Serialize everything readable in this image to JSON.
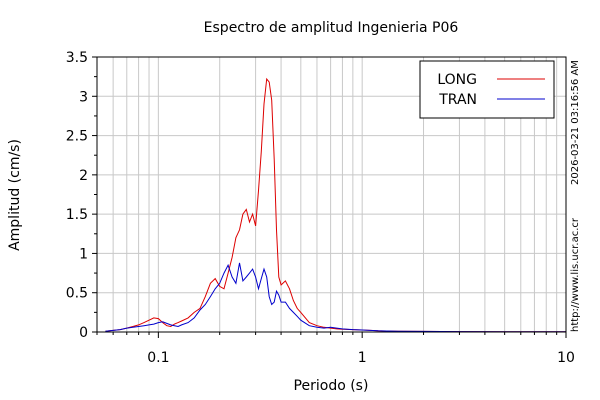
{
  "chart_data": {
    "type": "line",
    "title": "Espectro de amplitud Ingenieria P06",
    "xlabel": "Periodo (s)",
    "ylabel": "Amplitud (cm/s)",
    "xscale": "log",
    "xlim": [
      0.05,
      10
    ],
    "ylim": [
      0,
      3.5
    ],
    "yticks": [
      "0",
      "0.5",
      "1",
      "1.5",
      "2",
      "2.5",
      "3",
      "3.5"
    ],
    "xticks": [
      "0.1",
      "1",
      "10"
    ],
    "grid": true,
    "legend_position": "top-right",
    "series": [
      {
        "name": "LONG",
        "color": "#dd0000",
        "x": [
          0.055,
          0.06,
          0.065,
          0.07,
          0.075,
          0.08,
          0.085,
          0.09,
          0.095,
          0.1,
          0.105,
          0.11,
          0.115,
          0.12,
          0.125,
          0.13,
          0.14,
          0.15,
          0.16,
          0.17,
          0.18,
          0.19,
          0.2,
          0.21,
          0.22,
          0.23,
          0.24,
          0.25,
          0.26,
          0.27,
          0.28,
          0.29,
          0.3,
          0.31,
          0.32,
          0.33,
          0.34,
          0.35,
          0.36,
          0.37,
          0.38,
          0.39,
          0.4,
          0.42,
          0.44,
          0.46,
          0.48,
          0.5,
          0.55,
          0.6,
          0.65,
          0.7,
          0.75,
          0.8,
          0.9,
          1.0,
          1.2,
          1.5,
          2,
          3,
          5,
          7,
          10
        ],
        "y": [
          0.01,
          0.02,
          0.03,
          0.05,
          0.07,
          0.09,
          0.12,
          0.15,
          0.18,
          0.17,
          0.12,
          0.08,
          0.07,
          0.1,
          0.12,
          0.14,
          0.18,
          0.25,
          0.3,
          0.45,
          0.62,
          0.68,
          0.58,
          0.55,
          0.75,
          0.95,
          1.2,
          1.3,
          1.5,
          1.56,
          1.4,
          1.5,
          1.35,
          1.8,
          2.3,
          2.9,
          3.22,
          3.18,
          2.95,
          2.2,
          1.3,
          0.7,
          0.6,
          0.65,
          0.55,
          0.4,
          0.3,
          0.25,
          0.12,
          0.08,
          0.06,
          0.05,
          0.04,
          0.035,
          0.03,
          0.025,
          0.015,
          0.01,
          0.008,
          0.005,
          0.003,
          0.003,
          0.002
        ]
      },
      {
        "name": "TRAN",
        "color": "#0000cc",
        "x": [
          0.055,
          0.06,
          0.065,
          0.07,
          0.075,
          0.08,
          0.085,
          0.09,
          0.095,
          0.1,
          0.105,
          0.11,
          0.115,
          0.12,
          0.125,
          0.13,
          0.14,
          0.15,
          0.16,
          0.17,
          0.18,
          0.19,
          0.2,
          0.21,
          0.22,
          0.23,
          0.24,
          0.25,
          0.26,
          0.27,
          0.28,
          0.29,
          0.3,
          0.31,
          0.32,
          0.33,
          0.34,
          0.35,
          0.36,
          0.37,
          0.38,
          0.39,
          0.4,
          0.42,
          0.44,
          0.46,
          0.48,
          0.5,
          0.55,
          0.6,
          0.65,
          0.7,
          0.75,
          0.8,
          0.9,
          1.0,
          1.2,
          1.5,
          2,
          3,
          5,
          7,
          10
        ],
        "y": [
          0.01,
          0.02,
          0.03,
          0.05,
          0.06,
          0.07,
          0.08,
          0.09,
          0.1,
          0.12,
          0.13,
          0.11,
          0.09,
          0.08,
          0.07,
          0.09,
          0.12,
          0.18,
          0.28,
          0.35,
          0.45,
          0.55,
          0.62,
          0.75,
          0.85,
          0.7,
          0.62,
          0.88,
          0.65,
          0.7,
          0.75,
          0.8,
          0.7,
          0.55,
          0.68,
          0.8,
          0.7,
          0.45,
          0.35,
          0.38,
          0.52,
          0.47,
          0.38,
          0.38,
          0.3,
          0.25,
          0.2,
          0.15,
          0.08,
          0.06,
          0.05,
          0.06,
          0.05,
          0.04,
          0.03,
          0.025,
          0.015,
          0.01,
          0.008,
          0.005,
          0.003,
          0.003,
          0.002
        ]
      }
    ]
  },
  "side": {
    "timestamp": "2026-03-21 03:16:56 AM",
    "url": "http://www.lis.ucr.ac.cr"
  }
}
